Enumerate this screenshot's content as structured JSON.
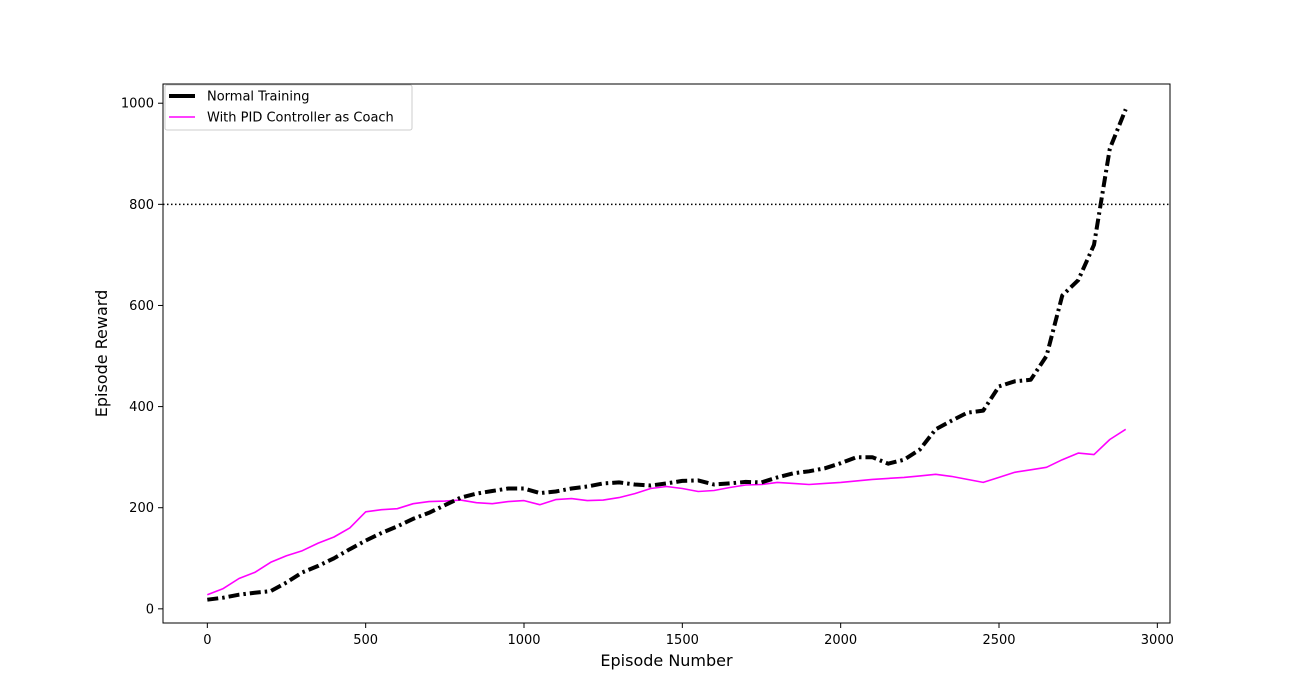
{
  "chart_data": {
    "type": "line",
    "title": "",
    "xlabel": "Episode Number",
    "ylabel": "Episode Reward",
    "xlim": [
      -140,
      3040
    ],
    "ylim": [
      -28,
      1038
    ],
    "xticks": [
      0,
      500,
      1000,
      1500,
      2000,
      2500,
      3000
    ],
    "yticks": [
      0,
      200,
      400,
      600,
      800,
      1000
    ],
    "grid": false,
    "legend_position": "top-left",
    "reference_line": {
      "y": 800,
      "style": "dotted",
      "color": "#000000"
    },
    "series": [
      {
        "name": "Normal Training",
        "color": "#000000",
        "style": "dash-dot",
        "x": [
          0,
          50,
          100,
          150,
          200,
          250,
          300,
          350,
          400,
          450,
          500,
          550,
          600,
          650,
          700,
          750,
          800,
          850,
          900,
          950,
          1000,
          1050,
          1100,
          1150,
          1200,
          1250,
          1300,
          1350,
          1400,
          1450,
          1500,
          1550,
          1600,
          1650,
          1700,
          1750,
          1800,
          1850,
          1900,
          1950,
          2000,
          2050,
          2100,
          2150,
          2200,
          2250,
          2300,
          2350,
          2400,
          2450,
          2500,
          2550,
          2600,
          2650,
          2700,
          2750,
          2800,
          2850,
          2900
        ],
        "y": [
          18,
          22,
          28,
          32,
          35,
          52,
          72,
          85,
          100,
          118,
          135,
          150,
          163,
          178,
          190,
          205,
          220,
          228,
          233,
          238,
          238,
          229,
          232,
          238,
          242,
          248,
          250,
          246,
          244,
          248,
          253,
          254,
          246,
          248,
          251,
          250,
          260,
          268,
          272,
          278,
          288,
          300,
          300,
          287,
          295,
          315,
          355,
          372,
          388,
          392,
          440,
          450,
          453,
          500,
          620,
          650,
          720,
          910,
          988
        ]
      },
      {
        "name": "With PID Controller as Coach",
        "color": "#ff00ff",
        "style": "solid",
        "x": [
          0,
          50,
          100,
          150,
          200,
          250,
          300,
          350,
          400,
          450,
          500,
          550,
          600,
          650,
          700,
          750,
          800,
          850,
          900,
          950,
          1000,
          1050,
          1100,
          1150,
          1200,
          1250,
          1300,
          1350,
          1400,
          1450,
          1500,
          1550,
          1600,
          1650,
          1700,
          1750,
          1800,
          1850,
          1900,
          1950,
          2000,
          2050,
          2100,
          2150,
          2200,
          2250,
          2300,
          2350,
          2400,
          2450,
          2500,
          2550,
          2600,
          2650,
          2700,
          2750,
          2800,
          2850,
          2900
        ],
        "y": [
          28,
          40,
          60,
          72,
          92,
          105,
          115,
          130,
          142,
          160,
          192,
          196,
          198,
          208,
          212,
          213,
          215,
          210,
          208,
          212,
          214,
          206,
          216,
          218,
          214,
          215,
          220,
          228,
          238,
          242,
          238,
          232,
          234,
          240,
          245,
          246,
          250,
          248,
          246,
          248,
          250,
          253,
          256,
          258,
          260,
          263,
          266,
          262,
          256,
          250,
          260,
          270,
          275,
          280,
          295,
          308,
          305,
          335,
          355
        ]
      }
    ]
  }
}
